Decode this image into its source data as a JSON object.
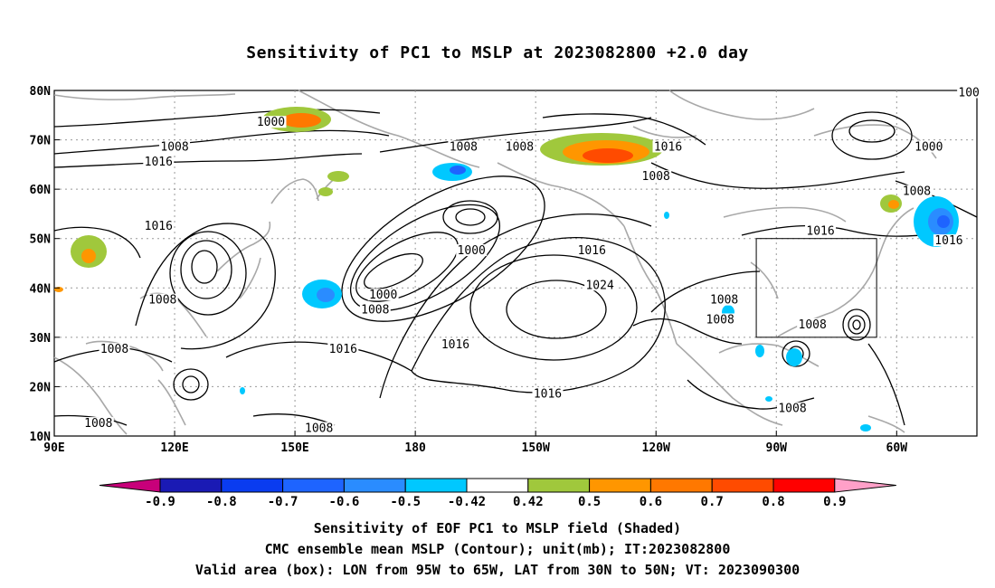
{
  "title": "Sensitivity of PC1 to MSLP at 2023082800 +2.0 day",
  "axes": {
    "lat_labels": [
      "80N",
      "70N",
      "60N",
      "50N",
      "40N",
      "30N",
      "20N",
      "10N"
    ],
    "lon_labels": [
      "90E",
      "120E",
      "150E",
      "180",
      "150W",
      "120W",
      "90W",
      "60W"
    ],
    "lat_range": [
      10,
      80
    ],
    "lon_range_east": [
      90,
      320
    ],
    "grid": true,
    "grid_style": "dotted"
  },
  "colorbar": {
    "labels": [
      "-0.9",
      "-0.8",
      "-0.7",
      "-0.6",
      "-0.5",
      "-0.42",
      "0.42",
      "0.5",
      "0.6",
      "0.7",
      "0.8",
      "0.9"
    ],
    "colors": [
      "#c8007a",
      "#1a1ab4",
      "#0a3cf0",
      "#1e64ff",
      "#2a8cff",
      "#00c8ff",
      "#ffffff",
      "#a0c83c",
      "#ff9600",
      "#ff7800",
      "#ff4b00",
      "#ff0000",
      "#ffa0c8"
    ]
  },
  "contour_labels": [
    {
      "text": "1000",
      "lon": 144,
      "lat": 73
    },
    {
      "text": "1008",
      "lon": 120,
      "lat": 68
    },
    {
      "text": "1016",
      "lon": 116,
      "lat": 65
    },
    {
      "text": "1008",
      "lon": 192,
      "lat": 68
    },
    {
      "text": "1008",
      "lon": 206,
      "lat": 68
    },
    {
      "text": "1016",
      "lon": 243,
      "lat": 68
    },
    {
      "text": "1008",
      "lon": 240,
      "lat": 62
    },
    {
      "text": "1000",
      "lon": 308,
      "lat": 68
    },
    {
      "text": "1008",
      "lon": 305,
      "lat": 59
    },
    {
      "text": "1016",
      "lon": 116,
      "lat": 52
    },
    {
      "text": "1000",
      "lon": 194,
      "lat": 47
    },
    {
      "text": "1016",
      "lon": 224,
      "lat": 47
    },
    {
      "text": "1024",
      "lon": 226,
      "lat": 40
    },
    {
      "text": "1016",
      "lon": 281,
      "lat": 51
    },
    {
      "text": "1016",
      "lon": 313,
      "lat": 49
    },
    {
      "text": "1008",
      "lon": 117,
      "lat": 37
    },
    {
      "text": "1000",
      "lon": 172,
      "lat": 38
    },
    {
      "text": "1008",
      "lon": 170,
      "lat": 35
    },
    {
      "text": "1008",
      "lon": 257,
      "lat": 37
    },
    {
      "text": "1008",
      "lon": 256,
      "lat": 33
    },
    {
      "text": "1008",
      "lon": 279,
      "lat": 32
    },
    {
      "text": "1016",
      "lon": 162,
      "lat": 27
    },
    {
      "text": "1016",
      "lon": 190,
      "lat": 28
    },
    {
      "text": "1008",
      "lon": 105,
      "lat": 27
    },
    {
      "text": "1016",
      "lon": 213,
      "lat": 18
    },
    {
      "text": "1008",
      "lon": 274,
      "lat": 15
    },
    {
      "text": "1008",
      "lon": 101,
      "lat": 12
    },
    {
      "text": "1008",
      "lon": 156,
      "lat": 11
    },
    {
      "text": "100",
      "lon": 318,
      "lat": 79
    }
  ],
  "valid_box": {
    "lon_w": 265,
    "lon_e": 295,
    "lat_s": 30,
    "lat_n": 50
  },
  "footer": {
    "line1": "Sensitivity of EOF PC1 to MSLP field (Shaded)",
    "line2": "CMC ensemble mean MSLP (Contour); unit(mb); IT:2023082800",
    "line3": "Valid area (box): LON from 95W to 65W, LAT from 30N to 50N; VT: 2023090300"
  }
}
